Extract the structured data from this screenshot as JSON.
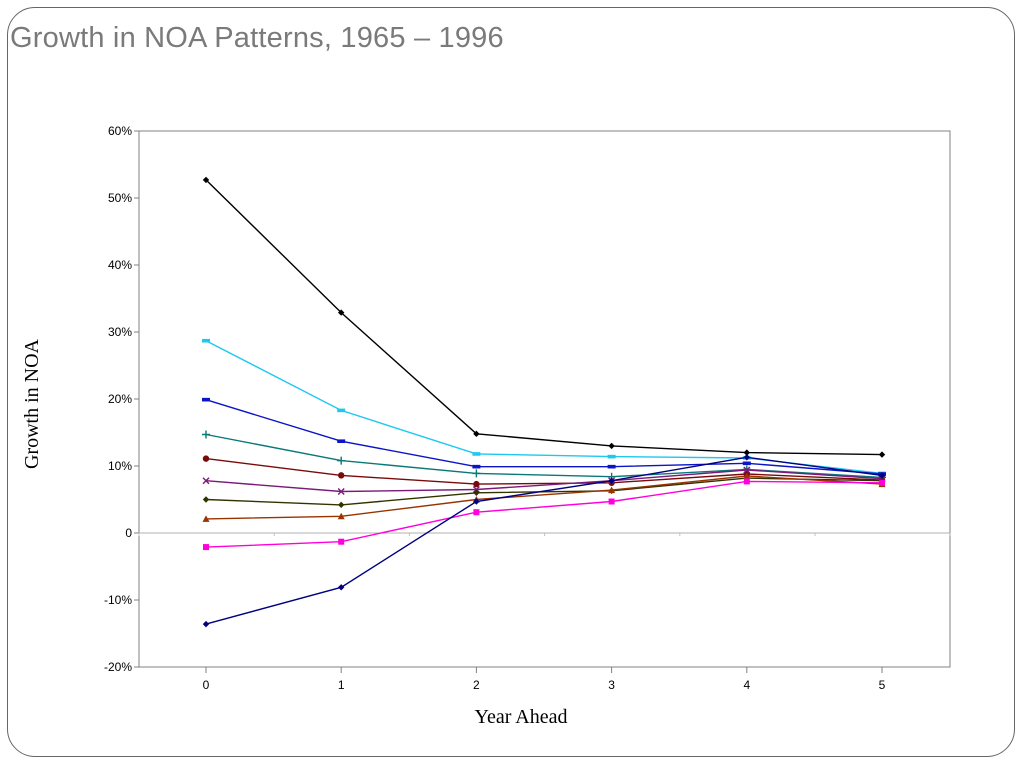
{
  "slide": {
    "title": "Growth in NOA Patterns, 1965 – 1996"
  },
  "chart_data": {
    "type": "line",
    "xlabel": "Year Ahead",
    "ylabel": "Growth in NOA",
    "x": [
      0,
      1,
      2,
      3,
      4,
      5
    ],
    "x_tick_labels": [
      "0",
      "1",
      "2",
      "3",
      "4",
      "5"
    ],
    "ylim": [
      -20,
      60
    ],
    "y_ticks": [
      -20,
      -10,
      0,
      10,
      20,
      30,
      40,
      50,
      60
    ],
    "y_tick_labels": [
      "-20%",
      "-10%",
      "0",
      "10%",
      "20%",
      "30%",
      "40%",
      "50%",
      "60%"
    ],
    "grid": false,
    "legend": "none",
    "series": [
      {
        "color": "#000000",
        "marker": "diamond",
        "values": [
          52.7,
          32.9,
          14.8,
          13.0,
          12.0,
          11.7
        ]
      },
      {
        "color": "#1EC8F0",
        "marker": "dash",
        "values": [
          28.7,
          18.3,
          11.8,
          11.4,
          11.2,
          8.9
        ]
      },
      {
        "color": "#0A14C8",
        "marker": "dash",
        "values": [
          19.9,
          13.7,
          9.9,
          9.9,
          10.4,
          8.8
        ]
      },
      {
        "color": "#0A7878",
        "marker": "plus",
        "values": [
          14.7,
          10.8,
          8.9,
          8.4,
          9.5,
          8.3
        ]
      },
      {
        "color": "#7A0A0A",
        "marker": "circle",
        "values": [
          11.1,
          8.6,
          7.3,
          7.5,
          8.8,
          7.9
        ]
      },
      {
        "color": "#7A1A7A",
        "marker": "x",
        "values": [
          7.8,
          6.2,
          6.5,
          7.8,
          9.4,
          8.1
        ]
      },
      {
        "color": "#333300",
        "marker": "diamond",
        "values": [
          5.0,
          4.2,
          6.0,
          6.3,
          8.2,
          7.8
        ]
      },
      {
        "color": "#993300",
        "marker": "triangle",
        "values": [
          2.1,
          2.5,
          5.0,
          6.4,
          8.5,
          7.3
        ]
      },
      {
        "color": "#FF00DD",
        "marker": "square",
        "values": [
          -2.1,
          -1.3,
          3.1,
          4.7,
          7.7,
          7.5
        ]
      },
      {
        "color": "#000080",
        "marker": "diamond",
        "values": [
          -13.6,
          -8.1,
          4.7,
          7.8,
          11.3,
          8.6
        ]
      }
    ]
  }
}
